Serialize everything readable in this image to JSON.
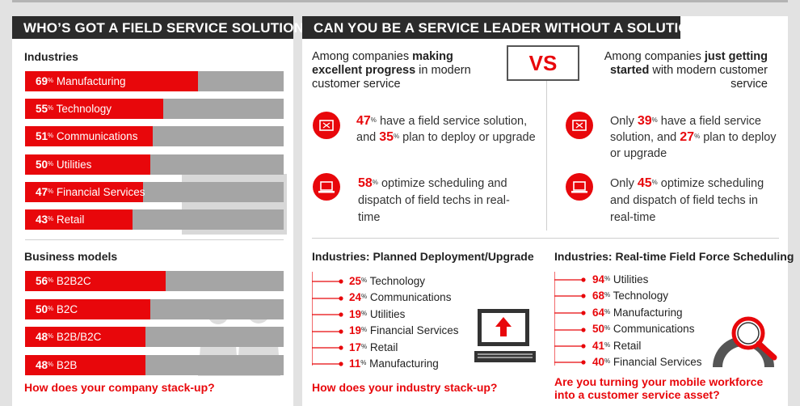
{
  "left": {
    "title": "WHO’S GOT A FIELD SERVICE SOLUTION?",
    "industries_label": "Industries",
    "industries": [
      {
        "pct": "69",
        "unit": "%",
        "name": "Manufacturing",
        "value": 69
      },
      {
        "pct": "55",
        "unit": "%",
        "name": "Technology",
        "value": 55
      },
      {
        "pct": "51",
        "unit": "%",
        "name": "Communications",
        "value": 51
      },
      {
        "pct": "50",
        "unit": "%",
        "name": "Utilities",
        "value": 50
      },
      {
        "pct": "47",
        "unit": "%",
        "name": "Financial Services",
        "value": 47
      },
      {
        "pct": "43",
        "unit": "%",
        "name": "Retail",
        "value": 43
      }
    ],
    "business_label": "Business models",
    "business": [
      {
        "pct": "56",
        "unit": "%",
        "name": "B2B2C",
        "value": 56
      },
      {
        "pct": "50",
        "unit": "%",
        "name": "B2C",
        "value": 50
      },
      {
        "pct": "48",
        "unit": "%",
        "name": "B2B/B2C",
        "value": 48
      },
      {
        "pct": "48",
        "unit": "%",
        "name": "B2B",
        "value": 48
      }
    ],
    "question": "How does your company stack-up?"
  },
  "right": {
    "title": "CAN YOU BE A SERVICE LEADER WITHOUT A SOLUTION?",
    "vs": "VS",
    "left_intro": {
      "a": "Among companies ",
      "b": "making excellent progress",
      "c": " in modern customer service"
    },
    "right_intro": {
      "a": "Among companies ",
      "b": "just getting started",
      "c": " with modern customer service"
    },
    "left_stats": [
      {
        "pre": "",
        "p1": "47",
        "t1": " have a field service solution, and ",
        "p2": "35",
        "t2": " plan to deploy or upgrade"
      },
      {
        "pre": "",
        "p1": "58",
        "t1": " optimize scheduling and dispatch of field techs in real-time",
        "p2": "",
        "t2": ""
      }
    ],
    "right_stats": [
      {
        "pre": "Only ",
        "p1": "39",
        "t1": " have a field service solution, and ",
        "p2": "27",
        "t2": " plan to deploy or upgrade"
      },
      {
        "pre": "Only ",
        "p1": "45",
        "t1": " optimize scheduling and dispatch of field techs in real-time",
        "p2": "",
        "t2": ""
      }
    ],
    "unit": "%",
    "planned": {
      "title": "Industries: Planned Deployment/Upgrade",
      "items": [
        {
          "pct": "25",
          "name": "Technology"
        },
        {
          "pct": "24",
          "name": "Communications"
        },
        {
          "pct": "19",
          "name": "Utilities"
        },
        {
          "pct": "19",
          "name": "Financial Services"
        },
        {
          "pct": "17",
          "name": "Retail"
        },
        {
          "pct": "11",
          "name": "Manufacturing"
        }
      ],
      "question": "How does your industry stack-up?"
    },
    "realtime": {
      "title": "Industries: Real-time Field Force Scheduling",
      "items": [
        {
          "pct": "94",
          "name": "Utilities"
        },
        {
          "pct": "68",
          "name": "Technology"
        },
        {
          "pct": "64",
          "name": "Manufacturing"
        },
        {
          "pct": "50",
          "name": "Communications"
        },
        {
          "pct": "41",
          "name": "Retail"
        },
        {
          "pct": "40",
          "name": "Financial Services"
        }
      ],
      "question": "Are you turning your mobile workforce into a customer service asset?"
    }
  },
  "colors": {
    "accent": "#e8070b",
    "bar_bg": "#a5a5a5",
    "header": "#2b2b2b"
  }
}
